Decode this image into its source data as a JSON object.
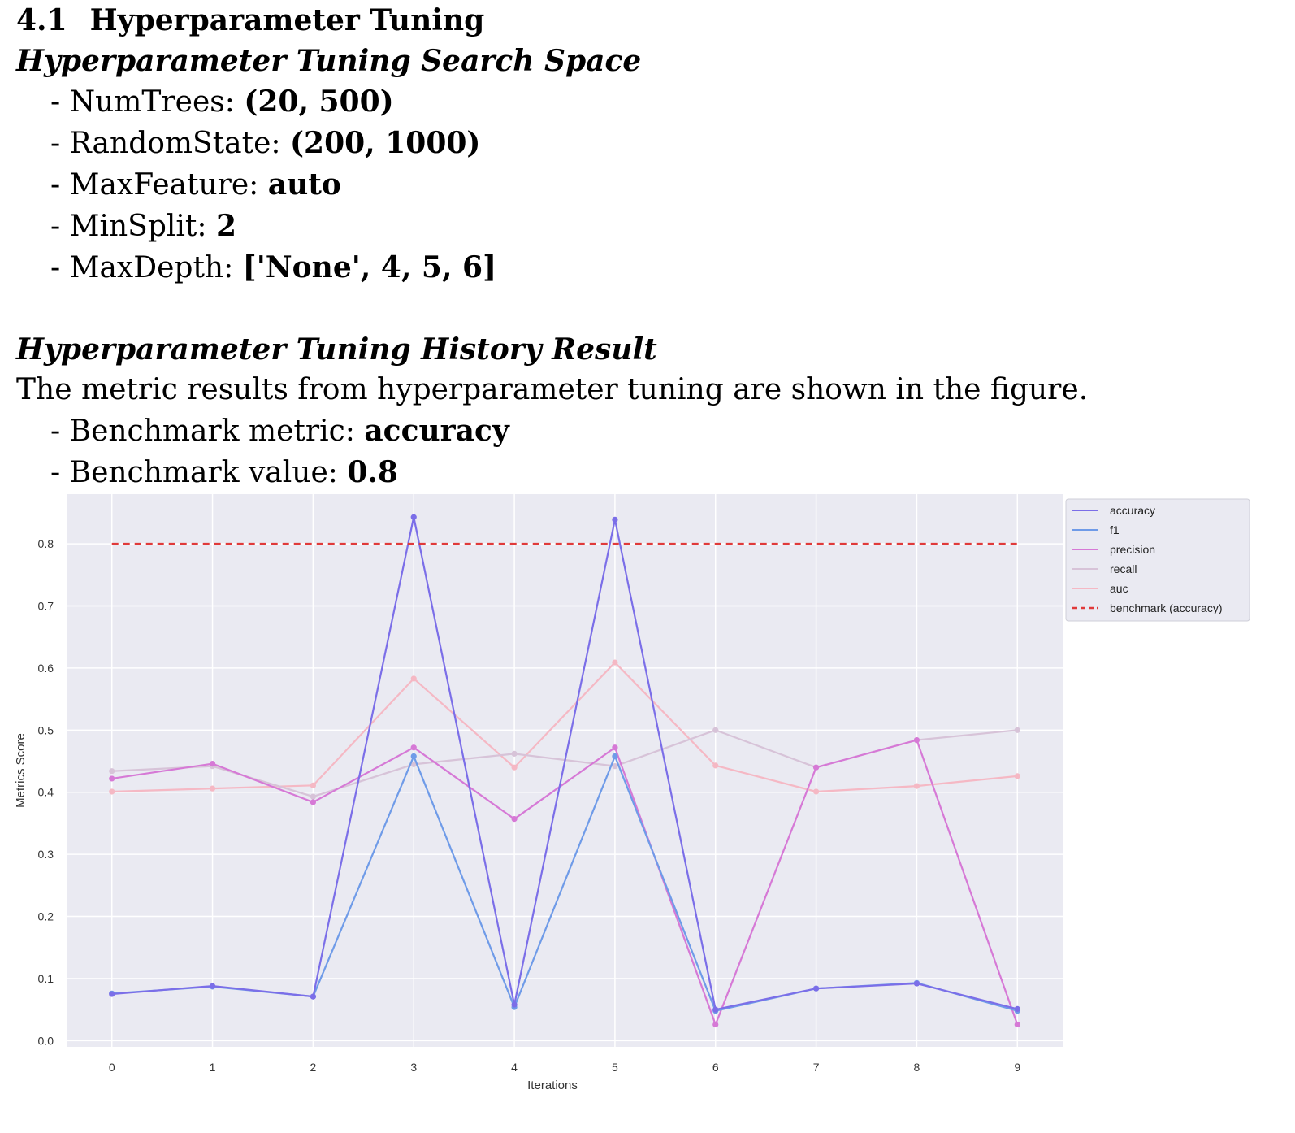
{
  "section": {
    "number": "4.1",
    "title": "Hyperparameter Tuning"
  },
  "search_space": {
    "heading": "Hyperparameter Tuning Search Space",
    "items": [
      {
        "label": "- NumTrees: ",
        "value": "(20, 500)"
      },
      {
        "label": "- RandomState: ",
        "value": "(200, 1000)"
      },
      {
        "label": "- MaxFeature: ",
        "value": "auto"
      },
      {
        "label": "- MinSplit: ",
        "value": "2"
      },
      {
        "label": "- MaxDepth: ",
        "value": "['None', 4, 5, 6]"
      }
    ]
  },
  "history": {
    "heading": "Hyperparameter Tuning History Result",
    "text": "The metric results from hyperparameter tuning are shown in the figure.",
    "items": [
      {
        "label": "- Benchmark metric: ",
        "value": "accuracy"
      },
      {
        "label": "- Benchmark value: ",
        "value": "0.8"
      }
    ]
  },
  "chart_data": {
    "type": "line",
    "xlabel": "Iterations",
    "ylabel": "Metrics Score",
    "x": [
      0,
      1,
      2,
      3,
      4,
      5,
      6,
      7,
      8,
      9
    ],
    "xlim": [
      -0.45,
      9.45
    ],
    "ylim": [
      -0.01,
      0.88
    ],
    "yticks": [
      0.0,
      0.1,
      0.2,
      0.3,
      0.4,
      0.5,
      0.6,
      0.7,
      0.8
    ],
    "ytick_labels": [
      "0.0",
      "0.1",
      "0.2",
      "0.3",
      "0.4",
      "0.5",
      "0.6",
      "0.7",
      "0.8"
    ],
    "xtick_labels": [
      "0",
      "1",
      "2",
      "3",
      "4",
      "5",
      "6",
      "7",
      "8",
      "9"
    ],
    "grid": true,
    "legend_position": "upper-right outside",
    "series": [
      {
        "name": "accuracy",
        "color": "#7b6ee8",
        "values": [
          0.075,
          0.088,
          0.071,
          0.843,
          0.058,
          0.839,
          0.05,
          0.084,
          0.092,
          0.051
        ]
      },
      {
        "name": "f1",
        "color": "#6f9be8",
        "values": [
          0.076,
          0.087,
          0.071,
          0.458,
          0.054,
          0.458,
          0.048,
          0.084,
          0.093,
          0.048
        ]
      },
      {
        "name": "precision",
        "color": "#d679d6",
        "values": [
          0.422,
          0.446,
          0.384,
          0.472,
          0.357,
          0.472,
          0.026,
          0.44,
          0.484,
          0.026
        ]
      },
      {
        "name": "recall",
        "color": "#d7c3d8",
        "values": [
          0.434,
          0.442,
          0.393,
          0.445,
          0.462,
          0.442,
          0.5,
          0.44,
          0.484,
          0.5
        ]
      },
      {
        "name": "auc",
        "color": "#f5b8c4",
        "values": [
          0.401,
          0.406,
          0.411,
          0.583,
          0.44,
          0.609,
          0.443,
          0.401,
          0.41,
          0.426
        ]
      }
    ],
    "benchmark": {
      "name": "benchmark (accuracy)",
      "value": 0.8,
      "color": "#e03a3a",
      "x_range": [
        0,
        9
      ]
    }
  }
}
